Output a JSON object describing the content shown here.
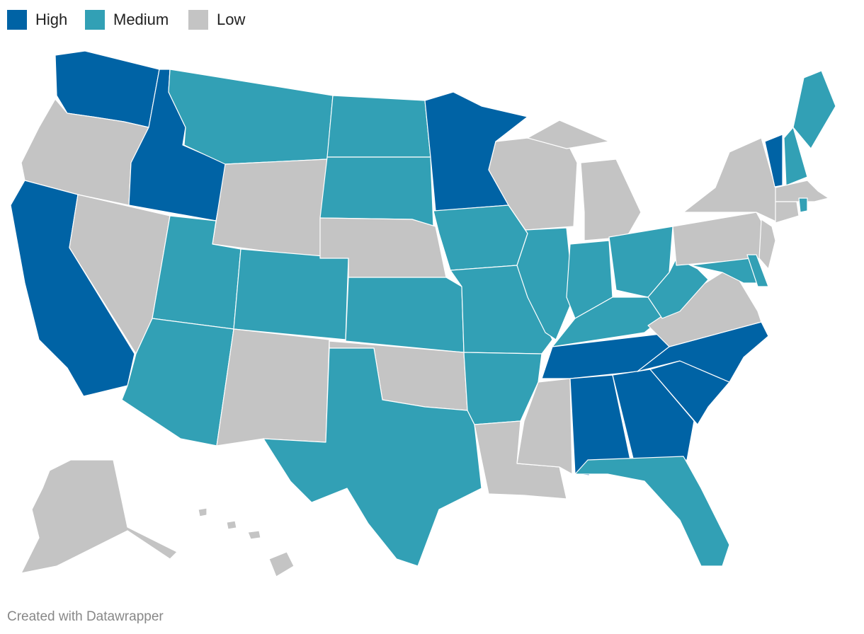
{
  "legend": [
    {
      "label": "High",
      "color": "#0063a5"
    },
    {
      "label": "Medium",
      "color": "#32a0b5"
    },
    {
      "label": "Low",
      "color": "#c4c4c4"
    }
  ],
  "footer": "Created with Datawrapper"
}
